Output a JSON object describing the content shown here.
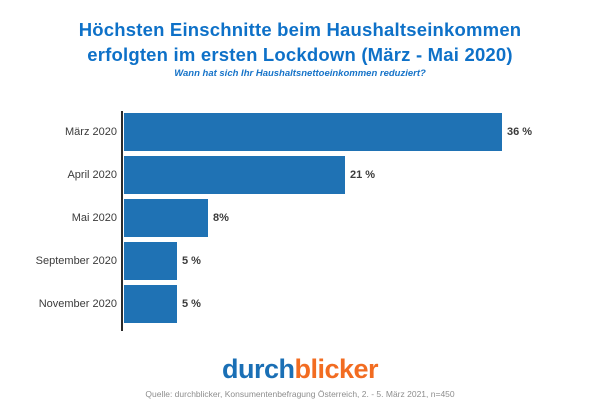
{
  "header": {
    "title_lines": [
      "Höchsten Einschnitte beim Haushaltseinkommen",
      "erfolgten im ersten Lockdown (März - Mai 2020)"
    ],
    "subtitle": "Wann hat sich Ihr Haushaltsnettoeinkommen reduziert?"
  },
  "chart_data": {
    "type": "bar",
    "orientation": "horizontal",
    "title": "Höchsten Einschnitte beim Haushaltseinkommen erfolgten im ersten Lockdown (März - Mai 2020)",
    "subtitle": "Wann hat sich Ihr Haushaltsnettoeinkommen reduziert?",
    "categories": [
      "März 2020",
      "April 2020",
      "Mai 2020",
      "September 2020",
      "November 2020"
    ],
    "values": [
      36,
      21,
      8,
      5,
      5
    ],
    "value_labels": [
      "36 %",
      "21 %",
      "8%",
      "5 %",
      "5 %"
    ],
    "unit": "%",
    "xlim": [
      0,
      36
    ],
    "grid": false,
    "legend": false,
    "bar_color": "#1f72b4",
    "axis_color": "#2b2b2b"
  },
  "footer": {
    "logo": {
      "part1": "durch",
      "part2": "blicker",
      "part1_color": "#1a6fb5",
      "part2_color": "#f26c21"
    },
    "source": "Quelle: durchblicker, Konsumentenbefragung Österreich, 2. - 5. März 2021, n=450"
  },
  "colors": {
    "title": "#0e71c8",
    "subtitle": "#1673c8",
    "label": "#3b3b3b",
    "source": "#8e8e8e",
    "background": "#ffffff"
  }
}
